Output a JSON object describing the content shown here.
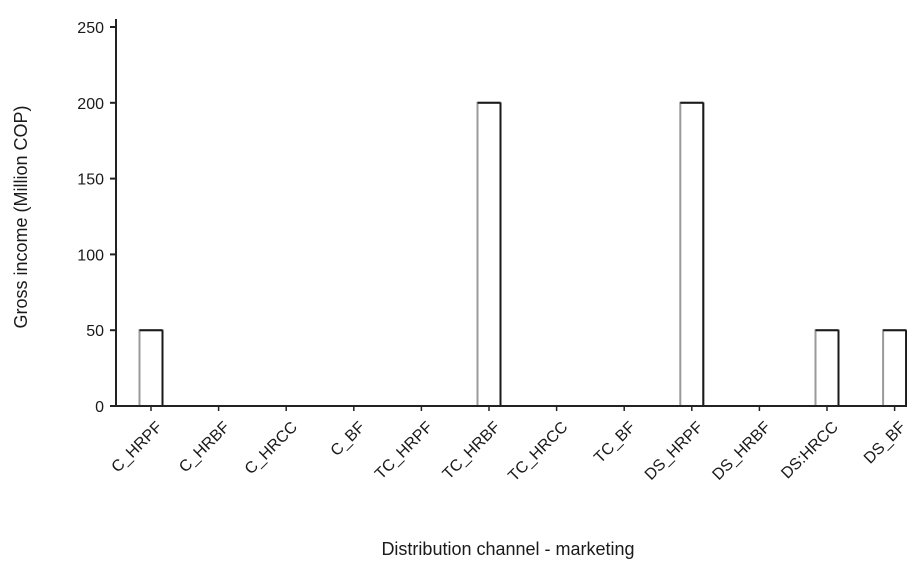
{
  "chart_data": {
    "type": "bar",
    "title": "",
    "xlabel": "Distribution channel - marketing",
    "ylabel": "Gross income (Million COP)",
    "ylim": [
      0,
      250
    ],
    "yticks": [
      0,
      50,
      100,
      150,
      200,
      250
    ],
    "grid": false,
    "legend": "none",
    "categories": [
      "C_HRPF",
      "C_HRBF",
      "C_HRCC",
      "C_BF",
      "TC_HRPF",
      "TC_HRBF",
      "TC_HRCC",
      "TC_BF",
      "DS_HRPF",
      "DS_HRBF",
      "DS:HRCC",
      "DS_BF"
    ],
    "values": [
      50,
      0,
      0,
      0,
      0,
      200,
      0,
      0,
      200,
      0,
      50,
      50
    ],
    "colors": {
      "axis": "#222222",
      "bar_fill": "#ffffff",
      "bar_edge": "#9a9a9a",
      "bar_edge_dark": "#1a1a1a"
    }
  }
}
